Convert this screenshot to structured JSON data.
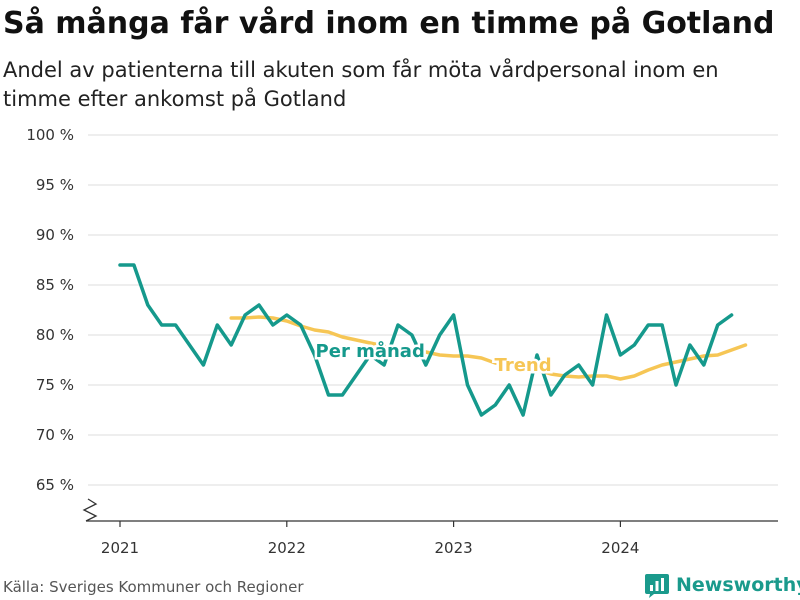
{
  "title": "Så många får vård inom en timme på Gotland",
  "subtitle": "Andel av patienterna till akuten som får möta vårdpersonal inom en timme efter ankomst på Gotland",
  "source": "Källa: Sveriges Kommuner och Regioner",
  "brand": {
    "name": "Newsworthy",
    "icon": "newsworthy-logo-icon"
  },
  "colors": {
    "monthly": "#15998c",
    "trend": "#f6c655",
    "grid": "#dddddd",
    "axis": "#333333",
    "text": "#333333",
    "brand": "#1a9a8c"
  },
  "chart_data": {
    "type": "line",
    "xlabel": "",
    "ylabel": "",
    "ylim": [
      65,
      100
    ],
    "y_break_below": true,
    "yticks": [
      100,
      95,
      90,
      85,
      80,
      75,
      70,
      65
    ],
    "ytick_labels": [
      "100 %",
      "95 %",
      "90 %",
      "85 %",
      "80 %",
      "75 %",
      "70 %",
      "65 %"
    ],
    "xticks": [
      "2021",
      "2022",
      "2023",
      "2024"
    ],
    "x_start": "2021-01",
    "grid": "horizontal",
    "legend": "inline labels",
    "series": [
      {
        "name": "Per månad",
        "label_at_x": "2022-07",
        "values": [
          87,
          87,
          83,
          81,
          81,
          79,
          77,
          81,
          79,
          82,
          83,
          81,
          82,
          81,
          78,
          74,
          74,
          76,
          78,
          77,
          81,
          80,
          77,
          80,
          82,
          75,
          72,
          73,
          75,
          72,
          78,
          74,
          76,
          77,
          75,
          82,
          78,
          79,
          81,
          81,
          75,
          79,
          77,
          81,
          82
        ]
      },
      {
        "name": "Trend",
        "label_at_x": "2023-06",
        "start_index": 8,
        "values": [
          81.7,
          81.7,
          81.8,
          81.7,
          81.4,
          80.9,
          80.5,
          80.3,
          79.8,
          79.5,
          79.2,
          78.9,
          78.7,
          78.5,
          78.3,
          78.0,
          77.9,
          77.9,
          77.7,
          77.2,
          77.0,
          76.8,
          76.5,
          76.1,
          75.9,
          75.8,
          75.9,
          75.9,
          75.6,
          75.9,
          76.5,
          77.0,
          77.3,
          77.6,
          77.9,
          78.0,
          78.5,
          79.0
        ]
      }
    ]
  }
}
